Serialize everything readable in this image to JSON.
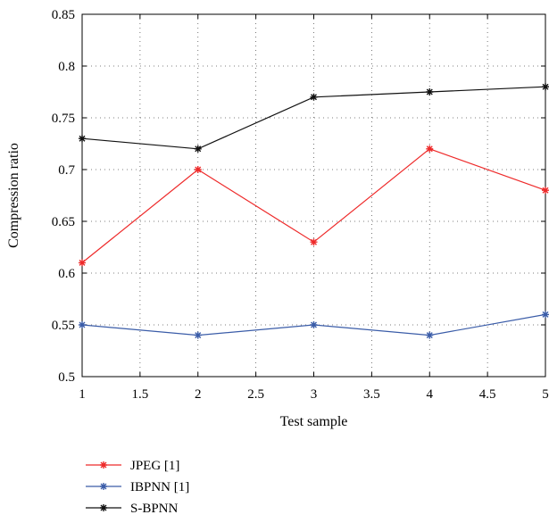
{
  "chart_data": {
    "type": "line",
    "title": "",
    "xlabel": "Test sample",
    "ylabel": "Compression ratio",
    "xlim": [
      1,
      5
    ],
    "ylim": [
      0.5,
      0.85
    ],
    "x_ticks": [
      "1",
      "1.5",
      "2",
      "2.5",
      "3",
      "3.5",
      "4",
      "4.5",
      "5"
    ],
    "y_ticks": [
      "0.5",
      "0.55",
      "0.6",
      "0.65",
      "0.7",
      "0.75",
      "0.8",
      "0.85"
    ],
    "grid": true,
    "legend_position": "below",
    "x": [
      1,
      2,
      3,
      4,
      5
    ],
    "series": [
      {
        "name": "JPEG [1]",
        "color": "#ee2a2a",
        "marker": "star",
        "values": [
          0.61,
          0.7,
          0.63,
          0.72,
          0.68
        ]
      },
      {
        "name": "IBPNN [1]",
        "color": "#3a5ca8",
        "marker": "star",
        "values": [
          0.55,
          0.54,
          0.55,
          0.54,
          0.56
        ]
      },
      {
        "name": "S-BPNN",
        "color": "#111111",
        "marker": "star",
        "values": [
          0.73,
          0.72,
          0.77,
          0.775,
          0.78
        ]
      }
    ]
  }
}
